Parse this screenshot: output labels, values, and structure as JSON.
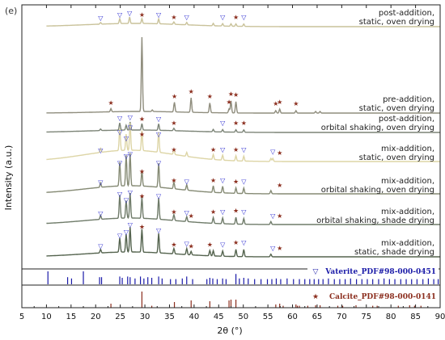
{
  "panel_label": "(e)",
  "chart_data": {
    "type": "line",
    "xlabel": "2θ (°)",
    "ylabel": "Intensity (a.u.)",
    "xlim": [
      5,
      90
    ],
    "xticks": [
      5,
      10,
      15,
      20,
      25,
      30,
      35,
      40,
      45,
      50,
      55,
      60,
      65,
      70,
      75,
      80,
      85,
      90
    ],
    "grid": false,
    "series": [
      {
        "name": "post-addition, static, oven drying",
        "label": [
          "post-addition,",
          "static, oven drying"
        ],
        "color": "#c9c29a",
        "peaks": [
          {
            "x": 21.0,
            "h": 2
          },
          {
            "x": 24.9,
            "h": 6
          },
          {
            "x": 26.9,
            "h": 8
          },
          {
            "x": 29.4,
            "h": 6
          },
          {
            "x": 32.8,
            "h": 6
          },
          {
            "x": 35.9,
            "h": 3
          },
          {
            "x": 38.5,
            "h": 3
          },
          {
            "x": 43.9,
            "h": 3
          },
          {
            "x": 45.8,
            "h": 3
          },
          {
            "x": 47.5,
            "h": 3
          },
          {
            "x": 48.5,
            "h": 3
          },
          {
            "x": 50.1,
            "h": 3
          }
        ],
        "vaterite_marks": [
          21.0,
          24.9,
          26.9,
          32.8,
          38.5,
          45.8,
          50.1
        ],
        "calcite_marks": [
          29.4,
          35.9,
          48.5
        ]
      },
      {
        "name": "pre-addition, static, oven drying",
        "label": [
          "pre-addition,",
          "static, oven drying"
        ],
        "color": "#8f8d7d",
        "peaks": [
          {
            "x": 23.1,
            "h": 4
          },
          {
            "x": 29.4,
            "h": 92
          },
          {
            "x": 31.5,
            "h": 2
          },
          {
            "x": 36.0,
            "h": 12
          },
          {
            "x": 39.4,
            "h": 18
          },
          {
            "x": 43.2,
            "h": 12
          },
          {
            "x": 47.1,
            "h": 5
          },
          {
            "x": 47.5,
            "h": 15
          },
          {
            "x": 48.5,
            "h": 14
          },
          {
            "x": 56.6,
            "h": 3
          },
          {
            "x": 57.4,
            "h": 5
          },
          {
            "x": 60.7,
            "h": 3
          },
          {
            "x": 64.7,
            "h": 2
          },
          {
            "x": 65.6,
            "h": 2
          }
        ],
        "vaterite_marks": [],
        "calcite_marks": [
          23.1,
          36.0,
          39.4,
          43.2,
          47.1,
          47.5,
          48.5,
          56.6,
          57.4,
          60.7
        ]
      },
      {
        "name": "post-addition, orbital shaking, oven drying",
        "label": [
          "post-addition,",
          "orbital shaking, oven drying"
        ],
        "color": "#7c8477",
        "peaks": [
          {
            "x": 21.0,
            "h": 2
          },
          {
            "x": 24.9,
            "h": 9
          },
          {
            "x": 26.2,
            "h": 6
          },
          {
            "x": 27.0,
            "h": 10
          },
          {
            "x": 29.4,
            "h": 8
          },
          {
            "x": 32.8,
            "h": 8
          },
          {
            "x": 35.9,
            "h": 3
          },
          {
            "x": 43.9,
            "h": 3
          },
          {
            "x": 45.8,
            "h": 3
          },
          {
            "x": 48.5,
            "h": 3
          },
          {
            "x": 50.1,
            "h": 3
          }
        ],
        "vaterite_marks": [
          24.9,
          27.0,
          32.8,
          45.8
        ],
        "calcite_marks": [
          29.4,
          35.9,
          48.5,
          50.1
        ]
      },
      {
        "name": "mix-addition, static, oven drying",
        "label": [
          "mix-addition,",
          "static, oven drying"
        ],
        "color": "#ddd5a6",
        "peaks": [
          {
            "x": 21.0,
            "h": 4
          },
          {
            "x": 24.9,
            "h": 22
          },
          {
            "x": 26.2,
            "h": 16
          },
          {
            "x": 27.0,
            "h": 27
          },
          {
            "x": 29.4,
            "h": 20
          },
          {
            "x": 32.8,
            "h": 20
          },
          {
            "x": 35.9,
            "h": 5
          },
          {
            "x": 38.5,
            "h": 4
          },
          {
            "x": 43.9,
            "h": 5
          },
          {
            "x": 45.8,
            "h": 5
          },
          {
            "x": 48.5,
            "h": 5
          },
          {
            "x": 50.1,
            "h": 5
          },
          {
            "x": 55.6,
            "h": 3
          },
          {
            "x": 56.0,
            "h": 3
          }
        ],
        "vaterite_marks": [
          21.0,
          24.9,
          26.2,
          27.0,
          32.8,
          45.8,
          50.1,
          56.0
        ],
        "calcite_marks": [
          29.4,
          35.9,
          43.9,
          48.5,
          57.4
        ]
      },
      {
        "name": "mix-addition, orbital shaking, oven drying",
        "label": [
          "mix-addition,",
          "orbital shaking, oven drying"
        ],
        "color": "#858a74",
        "peaks": [
          {
            "x": 21.0,
            "h": 4
          },
          {
            "x": 24.9,
            "h": 22
          },
          {
            "x": 26.2,
            "h": 28
          },
          {
            "x": 27.0,
            "h": 30
          },
          {
            "x": 29.4,
            "h": 14
          },
          {
            "x": 32.8,
            "h": 22
          },
          {
            "x": 35.9,
            "h": 6
          },
          {
            "x": 38.5,
            "h": 5
          },
          {
            "x": 43.9,
            "h": 6
          },
          {
            "x": 45.8,
            "h": 6
          },
          {
            "x": 48.5,
            "h": 5
          },
          {
            "x": 50.1,
            "h": 5
          },
          {
            "x": 55.6,
            "h": 3
          }
        ],
        "vaterite_marks": [
          21.0,
          24.9,
          26.2,
          27.0,
          32.8,
          38.5,
          45.8,
          50.1
        ],
        "calcite_marks": [
          29.4,
          35.9,
          43.9,
          48.5,
          57.4
        ]
      },
      {
        "name": "mix-addition, orbital shaking, shade drying",
        "label": [
          "mix-addition,",
          "orbital shaking, shade drying"
        ],
        "color": "#6f7b69",
        "peaks": [
          {
            "x": 21.0,
            "h": 4
          },
          {
            "x": 24.9,
            "h": 24
          },
          {
            "x": 26.2,
            "h": 18
          },
          {
            "x": 27.0,
            "h": 26
          },
          {
            "x": 29.4,
            "h": 22
          },
          {
            "x": 32.8,
            "h": 22
          },
          {
            "x": 35.9,
            "h": 6
          },
          {
            "x": 38.5,
            "h": 5
          },
          {
            "x": 43.9,
            "h": 6
          },
          {
            "x": 45.8,
            "h": 6
          },
          {
            "x": 48.5,
            "h": 7
          },
          {
            "x": 50.1,
            "h": 6
          },
          {
            "x": 55.6,
            "h": 3
          }
        ],
        "vaterite_marks": [
          21.0,
          24.9,
          26.2,
          27.0,
          32.8,
          38.5,
          45.8,
          50.1,
          56.0
        ],
        "calcite_marks": [
          29.4,
          35.9,
          39.4,
          43.9,
          48.5,
          57.4
        ]
      },
      {
        "name": "mix-addition, static, shade drying",
        "label": [
          "mix-addition,",
          "static, shade drying"
        ],
        "color": "#55644f",
        "peaks": [
          {
            "x": 21.0,
            "h": 4
          },
          {
            "x": 24.9,
            "h": 16
          },
          {
            "x": 26.2,
            "h": 20
          },
          {
            "x": 27.0,
            "h": 28
          },
          {
            "x": 29.4,
            "h": 26
          },
          {
            "x": 32.8,
            "h": 22
          },
          {
            "x": 35.9,
            "h": 6
          },
          {
            "x": 38.5,
            "h": 7
          },
          {
            "x": 39.4,
            "h": 4
          },
          {
            "x": 43.2,
            "h": 6
          },
          {
            "x": 43.9,
            "h": 6
          },
          {
            "x": 45.8,
            "h": 6
          },
          {
            "x": 48.5,
            "h": 8
          },
          {
            "x": 50.1,
            "h": 8
          },
          {
            "x": 55.6,
            "h": 3
          }
        ],
        "vaterite_marks": [
          21.0,
          24.9,
          26.2,
          27.0,
          32.8,
          38.5,
          45.8,
          50.1,
          56.0
        ],
        "calcite_marks": [
          29.4,
          35.9,
          39.4,
          43.2,
          48.5,
          57.4
        ]
      }
    ],
    "references": [
      {
        "name": "Vaterite_PDF#98-000-0451",
        "color": "#1a1aa8",
        "symbol": "▽",
        "sticks": [
          {
            "x": 10.3,
            "h": 1.0
          },
          {
            "x": 14.3,
            "h": 0.55
          },
          {
            "x": 15.1,
            "h": 0.45
          },
          {
            "x": 17.5,
            "h": 1.0
          },
          {
            "x": 20.8,
            "h": 0.55
          },
          {
            "x": 21.2,
            "h": 0.55
          },
          {
            "x": 24.9,
            "h": 0.6
          },
          {
            "x": 25.4,
            "h": 0.5
          },
          {
            "x": 26.5,
            "h": 0.6
          },
          {
            "x": 27.0,
            "h": 0.55
          },
          {
            "x": 28.0,
            "h": 0.45
          },
          {
            "x": 29.1,
            "h": 0.6
          },
          {
            "x": 29.8,
            "h": 0.45
          },
          {
            "x": 30.6,
            "h": 0.55
          },
          {
            "x": 31.4,
            "h": 0.5
          },
          {
            "x": 32.8,
            "h": 0.6
          },
          {
            "x": 33.5,
            "h": 0.45
          },
          {
            "x": 35.2,
            "h": 0.4
          },
          {
            "x": 36.3,
            "h": 0.4
          },
          {
            "x": 37.6,
            "h": 0.45
          },
          {
            "x": 38.5,
            "h": 0.6
          },
          {
            "x": 39.7,
            "h": 0.4
          },
          {
            "x": 42.6,
            "h": 0.4
          },
          {
            "x": 43.2,
            "h": 0.5
          },
          {
            "x": 43.8,
            "h": 0.45
          },
          {
            "x": 44.7,
            "h": 0.4
          },
          {
            "x": 45.8,
            "h": 0.45
          },
          {
            "x": 46.5,
            "h": 0.4
          },
          {
            "x": 48.5,
            "h": 0.8
          },
          {
            "x": 49.2,
            "h": 0.45
          },
          {
            "x": 50.1,
            "h": 0.5
          },
          {
            "x": 51.0,
            "h": 0.45
          },
          {
            "x": 52.3,
            "h": 0.4
          },
          {
            "x": 53.6,
            "h": 0.4
          },
          {
            "x": 54.9,
            "h": 0.4
          },
          {
            "x": 55.8,
            "h": 0.4
          },
          {
            "x": 56.7,
            "h": 0.45
          },
          {
            "x": 57.6,
            "h": 0.4
          },
          {
            "x": 58.9,
            "h": 0.45
          },
          {
            "x": 60.2,
            "h": 0.4
          },
          {
            "x": 61.4,
            "h": 0.4
          },
          {
            "x": 62.5,
            "h": 0.4
          },
          {
            "x": 63.5,
            "h": 0.4
          },
          {
            "x": 64.4,
            "h": 0.4
          },
          {
            "x": 65.3,
            "h": 0.4
          },
          {
            "x": 66.2,
            "h": 0.4
          },
          {
            "x": 67.3,
            "h": 0.45
          },
          {
            "x": 68.5,
            "h": 0.4
          },
          {
            "x": 69.6,
            "h": 0.4
          },
          {
            "x": 70.7,
            "h": 0.4
          },
          {
            "x": 71.8,
            "h": 0.45
          },
          {
            "x": 73.0,
            "h": 0.4
          },
          {
            "x": 74.1,
            "h": 0.4
          },
          {
            "x": 75.2,
            "h": 0.4
          },
          {
            "x": 76.3,
            "h": 0.4
          },
          {
            "x": 77.5,
            "h": 0.4
          },
          {
            "x": 78.6,
            "h": 0.45
          },
          {
            "x": 79.7,
            "h": 0.4
          },
          {
            "x": 80.8,
            "h": 0.4
          },
          {
            "x": 82.0,
            "h": 0.4
          },
          {
            "x": 83.1,
            "h": 0.4
          },
          {
            "x": 84.2,
            "h": 0.4
          },
          {
            "x": 85.3,
            "h": 0.4
          },
          {
            "x": 86.5,
            "h": 0.4
          },
          {
            "x": 87.6,
            "h": 0.45
          },
          {
            "x": 88.7,
            "h": 0.4
          },
          {
            "x": 89.6,
            "h": 0.4
          }
        ]
      },
      {
        "name": "Calcite_PDF#98-000-0141",
        "color": "#8b2d1d",
        "symbol": "★",
        "sticks": [
          {
            "x": 23.1,
            "h": 0.25
          },
          {
            "x": 29.4,
            "h": 1.0
          },
          {
            "x": 31.4,
            "h": 0.12
          },
          {
            "x": 36.0,
            "h": 0.35
          },
          {
            "x": 39.4,
            "h": 0.45
          },
          {
            "x": 43.2,
            "h": 0.4
          },
          {
            "x": 47.1,
            "h": 0.45
          },
          {
            "x": 47.5,
            "h": 0.5
          },
          {
            "x": 48.5,
            "h": 0.5
          },
          {
            "x": 56.6,
            "h": 0.2
          },
          {
            "x": 57.4,
            "h": 0.25
          },
          {
            "x": 58.1,
            "h": 0.12
          },
          {
            "x": 60.7,
            "h": 0.2
          },
          {
            "x": 61.0,
            "h": 0.12
          },
          {
            "x": 61.4,
            "h": 0.12
          },
          {
            "x": 63.1,
            "h": 0.12
          },
          {
            "x": 64.7,
            "h": 0.15
          },
          {
            "x": 65.6,
            "h": 0.15
          },
          {
            "x": 69.2,
            "h": 0.12
          },
          {
            "x": 70.2,
            "h": 0.12
          },
          {
            "x": 72.9,
            "h": 0.15
          },
          {
            "x": 76.3,
            "h": 0.12
          },
          {
            "x": 77.2,
            "h": 0.12
          },
          {
            "x": 81.5,
            "h": 0.12
          },
          {
            "x": 83.8,
            "h": 0.15
          },
          {
            "x": 84.8,
            "h": 0.12
          },
          {
            "x": 86.1,
            "h": 0.12
          }
        ]
      }
    ]
  }
}
